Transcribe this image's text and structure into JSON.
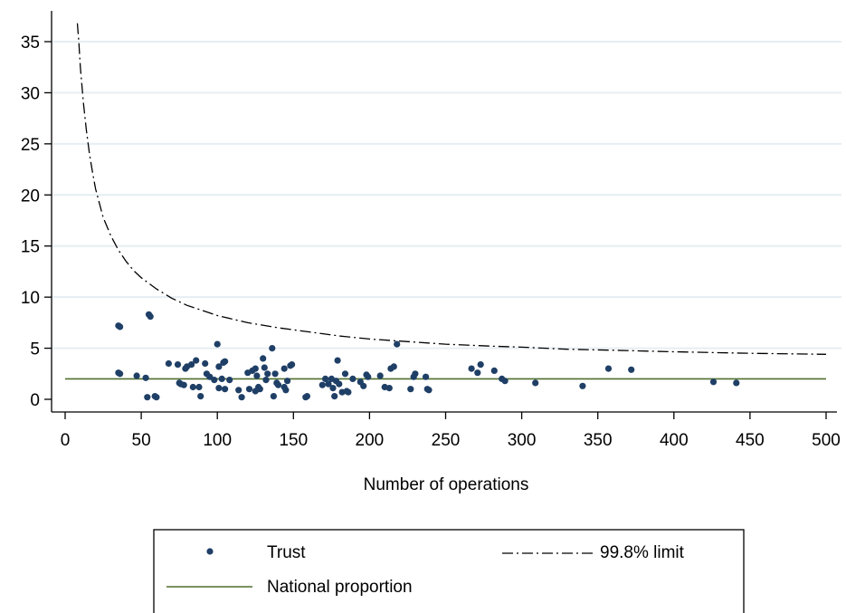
{
  "chart_data": {
    "type": "scatter",
    "title": "",
    "xlabel": "Number of operations",
    "ylabel": "",
    "xlim": [
      0,
      500
    ],
    "ylim": [
      0,
      37
    ],
    "xticks": [
      0,
      50,
      100,
      150,
      200,
      250,
      300,
      350,
      400,
      450,
      500
    ],
    "yticks": [
      0,
      5,
      10,
      15,
      20,
      25,
      30,
      35
    ],
    "grid": true,
    "legend_position": "bottom",
    "colors": {
      "trust": "#1f3f66",
      "national": "#4f6f2f",
      "limit": "#000000",
      "grid": "#e6eef2"
    },
    "series": [
      {
        "name": "Trust",
        "kind": "scatter",
        "points": [
          [
            35,
            7.2
          ],
          [
            36,
            7.1
          ],
          [
            35,
            2.6
          ],
          [
            36,
            2.5
          ],
          [
            47,
            2.3
          ],
          [
            53,
            2.1
          ],
          [
            54,
            0.2
          ],
          [
            55,
            8.3
          ],
          [
            56,
            8.1
          ],
          [
            59,
            0.3
          ],
          [
            60,
            0.2
          ],
          [
            68,
            3.5
          ],
          [
            74,
            3.4
          ],
          [
            75,
            1.6
          ],
          [
            76,
            1.5
          ],
          [
            78,
            1.4
          ],
          [
            79,
            3.0
          ],
          [
            80,
            3.2
          ],
          [
            83,
            3.4
          ],
          [
            84,
            1.2
          ],
          [
            86,
            3.8
          ],
          [
            88,
            1.2
          ],
          [
            89,
            0.3
          ],
          [
            92,
            3.5
          ],
          [
            93,
            2.5
          ],
          [
            95,
            2.2
          ],
          [
            98,
            1.9
          ],
          [
            100,
            5.4
          ],
          [
            101,
            3.2
          ],
          [
            101,
            1.1
          ],
          [
            103,
            2.0
          ],
          [
            104,
            3.6
          ],
          [
            105,
            3.7
          ],
          [
            105,
            1.0
          ],
          [
            108,
            1.9
          ],
          [
            114,
            0.9
          ],
          [
            116,
            0.2
          ],
          [
            120,
            2.6
          ],
          [
            121,
            1.0
          ],
          [
            123,
            2.8
          ],
          [
            125,
            3.0
          ],
          [
            125,
            0.8
          ],
          [
            126,
            2.3
          ],
          [
            127,
            1.2
          ],
          [
            128,
            1.0
          ],
          [
            130,
            4.0
          ],
          [
            131,
            3.1
          ],
          [
            132,
            1.9
          ],
          [
            133,
            2.5
          ],
          [
            136,
            5.0
          ],
          [
            137,
            0.3
          ],
          [
            138,
            2.5
          ],
          [
            139,
            1.6
          ],
          [
            140,
            1.4
          ],
          [
            144,
            3.0
          ],
          [
            144,
            1.2
          ],
          [
            145,
            0.9
          ],
          [
            146,
            1.8
          ],
          [
            148,
            3.3
          ],
          [
            149,
            3.4
          ],
          [
            158,
            0.2
          ],
          [
            159,
            0.3
          ],
          [
            169,
            1.4
          ],
          [
            171,
            2.0
          ],
          [
            173,
            1.5
          ],
          [
            175,
            2.0
          ],
          [
            176,
            1.1
          ],
          [
            177,
            0.3
          ],
          [
            178,
            1.8
          ],
          [
            179,
            3.8
          ],
          [
            180,
            1.5
          ],
          [
            182,
            0.7
          ],
          [
            184,
            2.5
          ],
          [
            185,
            0.8
          ],
          [
            186,
            0.7
          ],
          [
            189,
            2.0
          ],
          [
            194,
            1.7
          ],
          [
            196,
            1.3
          ],
          [
            198,
            2.4
          ],
          [
            199,
            2.2
          ],
          [
            207,
            2.3
          ],
          [
            210,
            1.2
          ],
          [
            213,
            1.1
          ],
          [
            214,
            3.0
          ],
          [
            216,
            3.2
          ],
          [
            218,
            5.4
          ],
          [
            227,
            1.0
          ],
          [
            229,
            2.2
          ],
          [
            230,
            2.5
          ],
          [
            237,
            2.2
          ],
          [
            238,
            1.0
          ],
          [
            239,
            0.9
          ],
          [
            267,
            3.0
          ],
          [
            271,
            2.6
          ],
          [
            273,
            3.4
          ],
          [
            282,
            2.8
          ],
          [
            287,
            2.0
          ],
          [
            289,
            1.8
          ],
          [
            309,
            1.6
          ],
          [
            340,
            1.3
          ],
          [
            357,
            3.0
          ],
          [
            372,
            2.9
          ],
          [
            426,
            1.7
          ],
          [
            441,
            1.6
          ]
        ]
      },
      {
        "name": "99.8% limit",
        "kind": "line",
        "style": "dash-dot",
        "x": [
          8,
          9,
          10,
          12,
          14,
          16,
          18,
          20,
          25,
          30,
          35,
          40,
          45,
          50,
          60,
          70,
          80,
          90,
          100,
          120,
          140,
          160,
          180,
          200,
          220,
          250,
          280,
          300,
          330,
          360,
          400,
          450,
          500
        ],
        "values": [
          36.8,
          35.0,
          32.5,
          29.0,
          26.3,
          24.0,
          22.2,
          20.6,
          17.8,
          16.0,
          14.6,
          13.5,
          12.6,
          11.9,
          10.8,
          9.9,
          9.2,
          8.7,
          8.2,
          7.5,
          7.0,
          6.6,
          6.2,
          5.9,
          5.7,
          5.4,
          5.2,
          5.1,
          4.9,
          4.8,
          4.65,
          4.5,
          4.4
        ]
      },
      {
        "name": "National proportion",
        "kind": "line",
        "style": "solid",
        "x": [
          0,
          500
        ],
        "values": [
          2.0,
          2.0
        ]
      }
    ]
  }
}
